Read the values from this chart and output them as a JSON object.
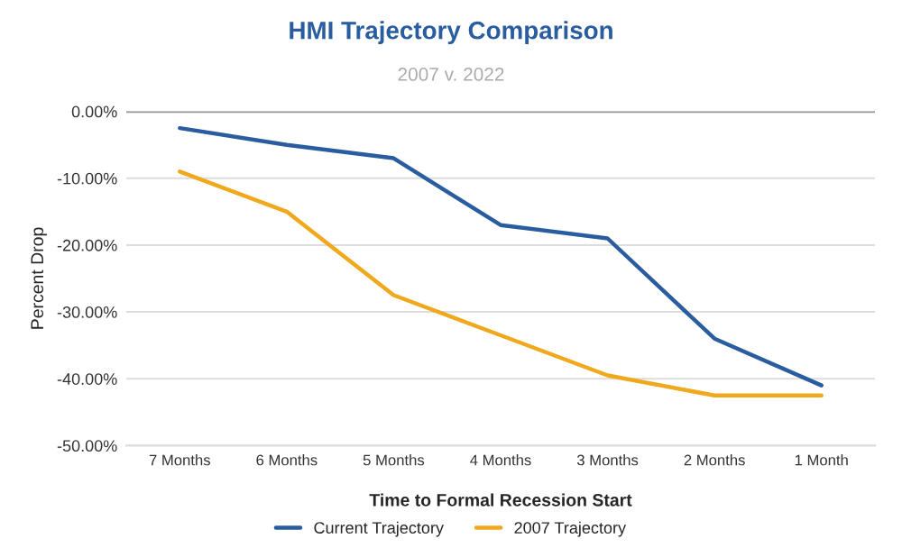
{
  "chart_data": {
    "type": "line",
    "title": "HMI Trajectory Comparison",
    "subtitle": "2007 v. 2022",
    "xlabel": "Time to Formal Recession Start",
    "ylabel": "Percent Drop",
    "categories": [
      "7 Months",
      "6 Months",
      "5 Months",
      "4 Months",
      "3 Months",
      "2 Months",
      "1 Month"
    ],
    "series": [
      {
        "name": "Current Trajectory",
        "color": "#2a5d9f",
        "values": [
          -2.5,
          -5,
          -7,
          -17,
          -19,
          -34,
          -41
        ]
      },
      {
        "name": "2007 Trajectory",
        "color": "#f0a81c",
        "values": [
          -9,
          -15,
          -27.5,
          -33.5,
          -39.5,
          -42.5,
          -42.5
        ]
      }
    ],
    "ylim": [
      -50,
      0
    ],
    "yticks": [
      {
        "value": -50,
        "label": "-50.00%"
      },
      {
        "value": -40,
        "label": "-40.00%"
      },
      {
        "value": -30,
        "label": "-30.00%"
      },
      {
        "value": -20,
        "label": "-20.00%"
      },
      {
        "value": -10,
        "label": "-10.00%"
      },
      {
        "value": 0,
        "label": "0.00%"
      }
    ],
    "grid": "y",
    "legend": "bottom",
    "marker": "none",
    "line_style": "solid"
  }
}
